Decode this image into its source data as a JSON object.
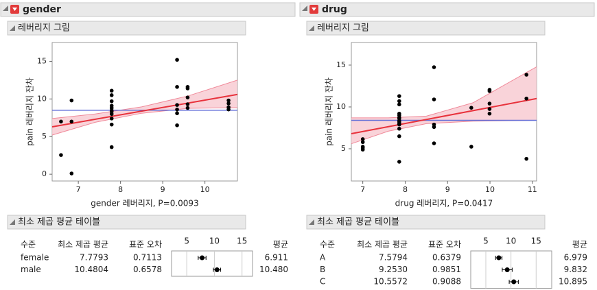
{
  "panels": [
    {
      "title": "gender",
      "plot_title": "레버리지 그림",
      "table": {
        "title": "최소 제곱 평균 테이블",
        "columns": [
          "수준",
          "최소 제곱 평균",
          "표준 오차",
          "평균"
        ],
        "mini_xlim": [
          2.25,
          16.9
        ],
        "mini_xticks": [
          5,
          10,
          15
        ],
        "rows": [
          {
            "level": "female",
            "lsmean": 7.7793,
            "se": 0.7113,
            "mean": 6.911
          },
          {
            "level": "male",
            "lsmean": 10.4804,
            "se": 0.6578,
            "mean": {
              "value": 10.48,
              "label": "10.480"
            }
          }
        ]
      }
    },
    {
      "title": "drug",
      "plot_title": "레버리지 그림",
      "table": {
        "title": "최소 제곱 평균 테이블",
        "columns": [
          "수준",
          "최소 제곱 평균",
          "표준 오차",
          "평균"
        ],
        "mini_xlim": [
          2.0,
          18.1
        ],
        "mini_xticks": [
          5,
          10,
          15
        ],
        "rows": [
          {
            "level": "A",
            "lsmean": 7.5794,
            "se": 0.6379,
            "mean": 6.979
          },
          {
            "level": "B",
            "lsmean": {
              "value": 9.253,
              "label": "9.2530"
            },
            "se": 0.9851,
            "mean": 9.832
          },
          {
            "level": "C",
            "lsmean": 10.5572,
            "se": 0.9088,
            "mean": 10.895
          }
        ]
      }
    }
  ],
  "chart_data": [
    {
      "type": "scatter",
      "x_label": "gender 레버리지, P=0.0093",
      "y_label": "pain 레버리지 잔차",
      "xlim": [
        6.38,
        10.77
      ],
      "ylim": [
        -0.9,
        17.5
      ],
      "xticks": [
        7,
        8,
        9,
        10
      ],
      "yticks": [
        0,
        5,
        10,
        15
      ],
      "color": "#000000",
      "x": [
        6.59,
        6.59,
        6.84,
        6.84,
        6.84,
        7.79,
        7.79,
        7.79,
        7.79,
        7.79,
        7.79,
        7.79,
        7.79,
        7.79,
        7.79,
        7.79,
        9.34,
        9.34,
        9.34,
        9.34,
        9.34,
        9.34,
        9.59,
        9.59,
        9.59,
        9.59,
        9.59,
        10.56,
        10.56,
        10.56,
        10.56
      ],
      "values": [
        7.0,
        2.55,
        9.8,
        7.0,
        0.1,
        11.1,
        10.5,
        9.7,
        9.1,
        8.8,
        8.5,
        8.3,
        8.0,
        7.4,
        6.6,
        3.6,
        15.2,
        11.6,
        9.2,
        8.6,
        8.1,
        6.5,
        11.6,
        11.4,
        10.2,
        9.3,
        8.8,
        9.8,
        9.4,
        8.9,
        8.6
      ],
      "fit_line": {
        "x": [
          6.38,
          10.77
        ],
        "y": [
          6.3,
          10.6
        ],
        "color": "#e8323c"
      },
      "mean_line": {
        "y": 8.5,
        "color": "#6470d8"
      },
      "band": {
        "x": [
          6.38,
          7.4,
          8.5,
          9.6,
          10.77
        ],
        "upper": [
          7.4,
          8.0,
          8.95,
          10.4,
          12.5
        ],
        "lower": [
          5.2,
          6.9,
          8.1,
          8.75,
          8.85
        ],
        "color": "#f8c8d0"
      }
    },
    {
      "type": "scatter",
      "x_label": "drug 레버리지, P=0.0417",
      "y_label": "pain 레버리지 잔차",
      "xlim": [
        6.73,
        11.1
      ],
      "ylim": [
        1.15,
        17.7
      ],
      "xticks": [
        7,
        8,
        9,
        10,
        11
      ],
      "yticks": [
        5,
        10,
        15
      ],
      "color": "#000000",
      "x": [
        7.0,
        7.0,
        7.0,
        7.0,
        7.0,
        7.86,
        7.86,
        7.86,
        7.86,
        7.86,
        7.86,
        7.86,
        7.86,
        7.86,
        7.86,
        7.86,
        7.86,
        7.86,
        7.86,
        8.68,
        8.68,
        8.68,
        8.68,
        8.68,
        9.56,
        9.56,
        9.99,
        9.99,
        9.99,
        9.99,
        9.99,
        10.86,
        10.86,
        10.86
      ],
      "values": [
        6.15,
        5.8,
        5.25,
        5.1,
        4.9,
        11.3,
        10.7,
        10.3,
        9.2,
        9.0,
        8.75,
        8.6,
        8.35,
        8.2,
        8.0,
        7.9,
        7.4,
        6.5,
        3.45,
        14.75,
        10.9,
        7.9,
        7.6,
        5.65,
        9.9,
        5.25,
        12.05,
        11.9,
        10.4,
        9.75,
        9.2,
        13.85,
        11.0,
        3.8
      ],
      "fit_line": {
        "x": [
          6.73,
          11.1
        ],
        "y": [
          6.8,
          11.0
        ],
        "color": "#e8323c"
      },
      "mean_line": {
        "y": 8.4,
        "color": "#6470d8"
      },
      "band": {
        "x": [
          6.73,
          7.6,
          8.5,
          9.6,
          11.1
        ],
        "upper": [
          8.7,
          8.7,
          8.9,
          10.5,
          14.8
        ],
        "lower": [
          5.6,
          7.1,
          8.0,
          8.3,
          8.4
        ],
        "color": "#f8c8d0"
      }
    }
  ]
}
